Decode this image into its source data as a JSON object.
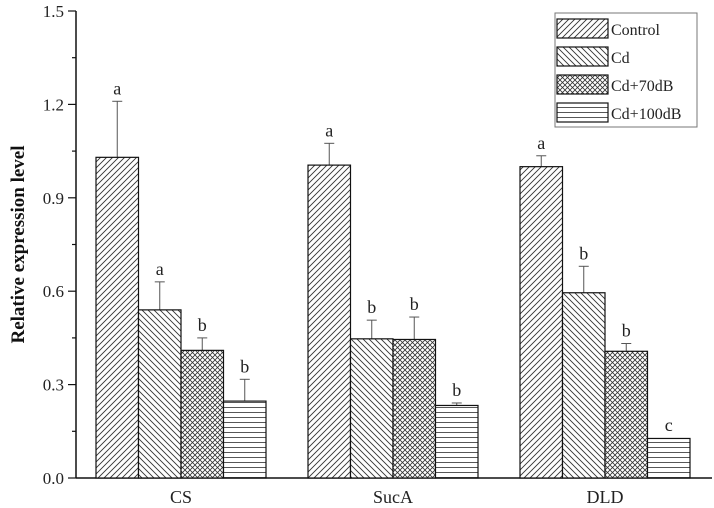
{
  "chart_data": {
    "type": "bar",
    "title": "",
    "xlabel": "",
    "ylabel": "Relative expression level",
    "ylim": [
      0,
      1.5
    ],
    "yticks": [
      "0.0",
      "0.3",
      "0.6",
      "0.9",
      "1.2",
      "1.5"
    ],
    "grid": false,
    "legend_position": "top-right",
    "categories": [
      "CS",
      "SucA",
      "DLD"
    ],
    "series": [
      {
        "name": "Control",
        "pattern": "diagonal-right",
        "values": [
          1.03,
          1.005,
          1.0
        ],
        "errors": [
          0.18,
          0.07,
          0.035
        ],
        "labels": [
          "a",
          "a",
          "a"
        ]
      },
      {
        "name": "Cd",
        "pattern": "diagonal-left",
        "values": [
          0.54,
          0.447,
          0.595
        ],
        "errors": [
          0.09,
          0.06,
          0.085
        ],
        "labels": [
          "a",
          "b",
          "b"
        ]
      },
      {
        "name": "Cd+70dB",
        "pattern": "crosshatch",
        "values": [
          0.41,
          0.445,
          0.407
        ],
        "errors": [
          0.04,
          0.072,
          0.025
        ],
        "labels": [
          "b",
          "b",
          "b"
        ]
      },
      {
        "name": "Cd+100dB",
        "pattern": "horizontal",
        "values": [
          0.247,
          0.233,
          0.127
        ],
        "errors": [
          0.07,
          0.008,
          0.002
        ],
        "labels": [
          "b",
          "b",
          "c"
        ]
      }
    ]
  }
}
